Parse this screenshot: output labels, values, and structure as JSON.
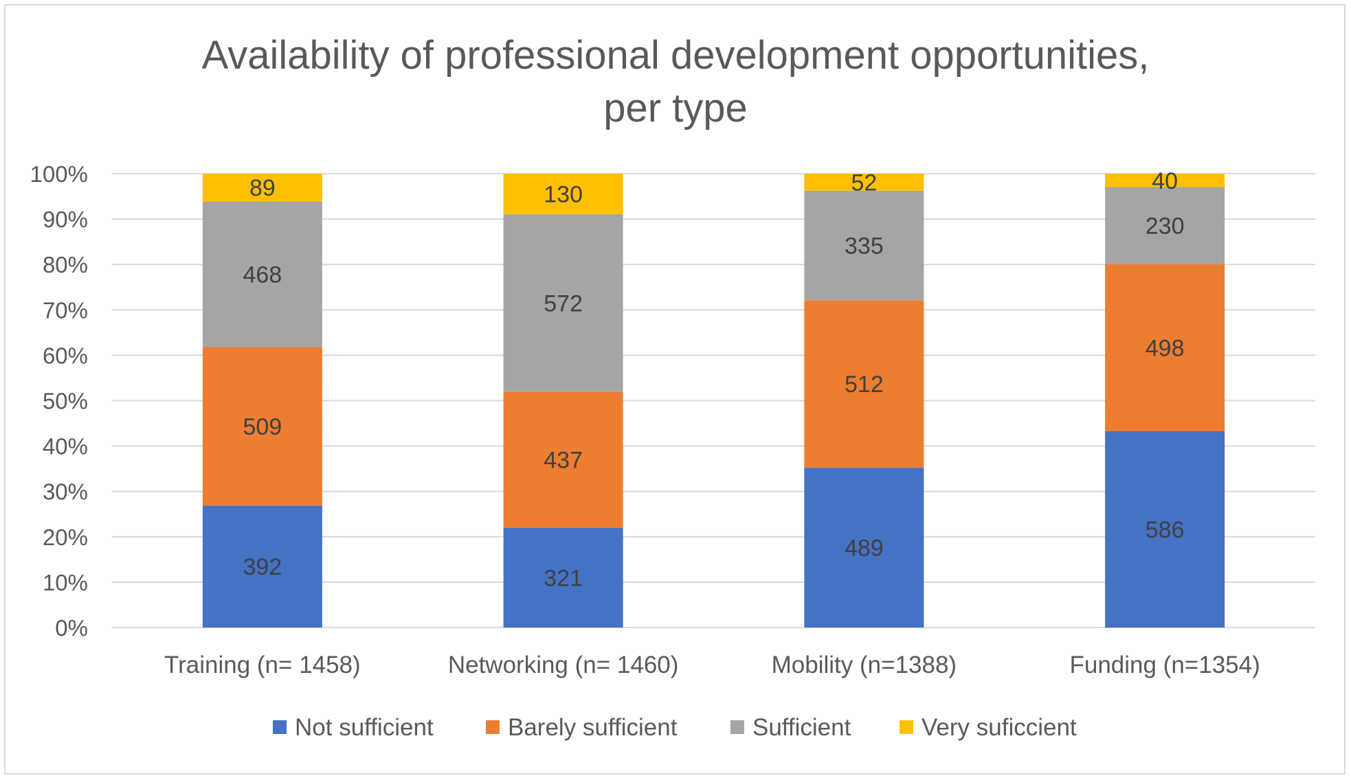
{
  "chart_data": {
    "type": "bar",
    "stacked": true,
    "normalized": true,
    "title_lines": [
      "Availability of professional development opportunities,",
      "per type"
    ],
    "categories": [
      "Training (n= 1458)",
      "Networking (n= 1460)",
      "Mobility (n=1388)",
      "Funding (n=1354)"
    ],
    "series": [
      {
        "name": "Not sufficient",
        "color": "#4472C4",
        "values": [
          392,
          321,
          489,
          586
        ]
      },
      {
        "name": "Barely sufficient",
        "color": "#ED7D31",
        "values": [
          509,
          437,
          512,
          498
        ]
      },
      {
        "name": "Sufficient",
        "color": "#A5A5A5",
        "values": [
          468,
          572,
          335,
          230
        ]
      },
      {
        "name": "Very suficcient",
        "color": "#FFC000",
        "values": [
          89,
          130,
          52,
          40
        ]
      }
    ],
    "y_ticks": [
      "0%",
      "10%",
      "20%",
      "30%",
      "40%",
      "50%",
      "60%",
      "70%",
      "80%",
      "90%",
      "100%"
    ],
    "ylim": [
      0,
      100
    ],
    "grid": true,
    "legend_position": "bottom",
    "xlabel": "",
    "ylabel": ""
  }
}
